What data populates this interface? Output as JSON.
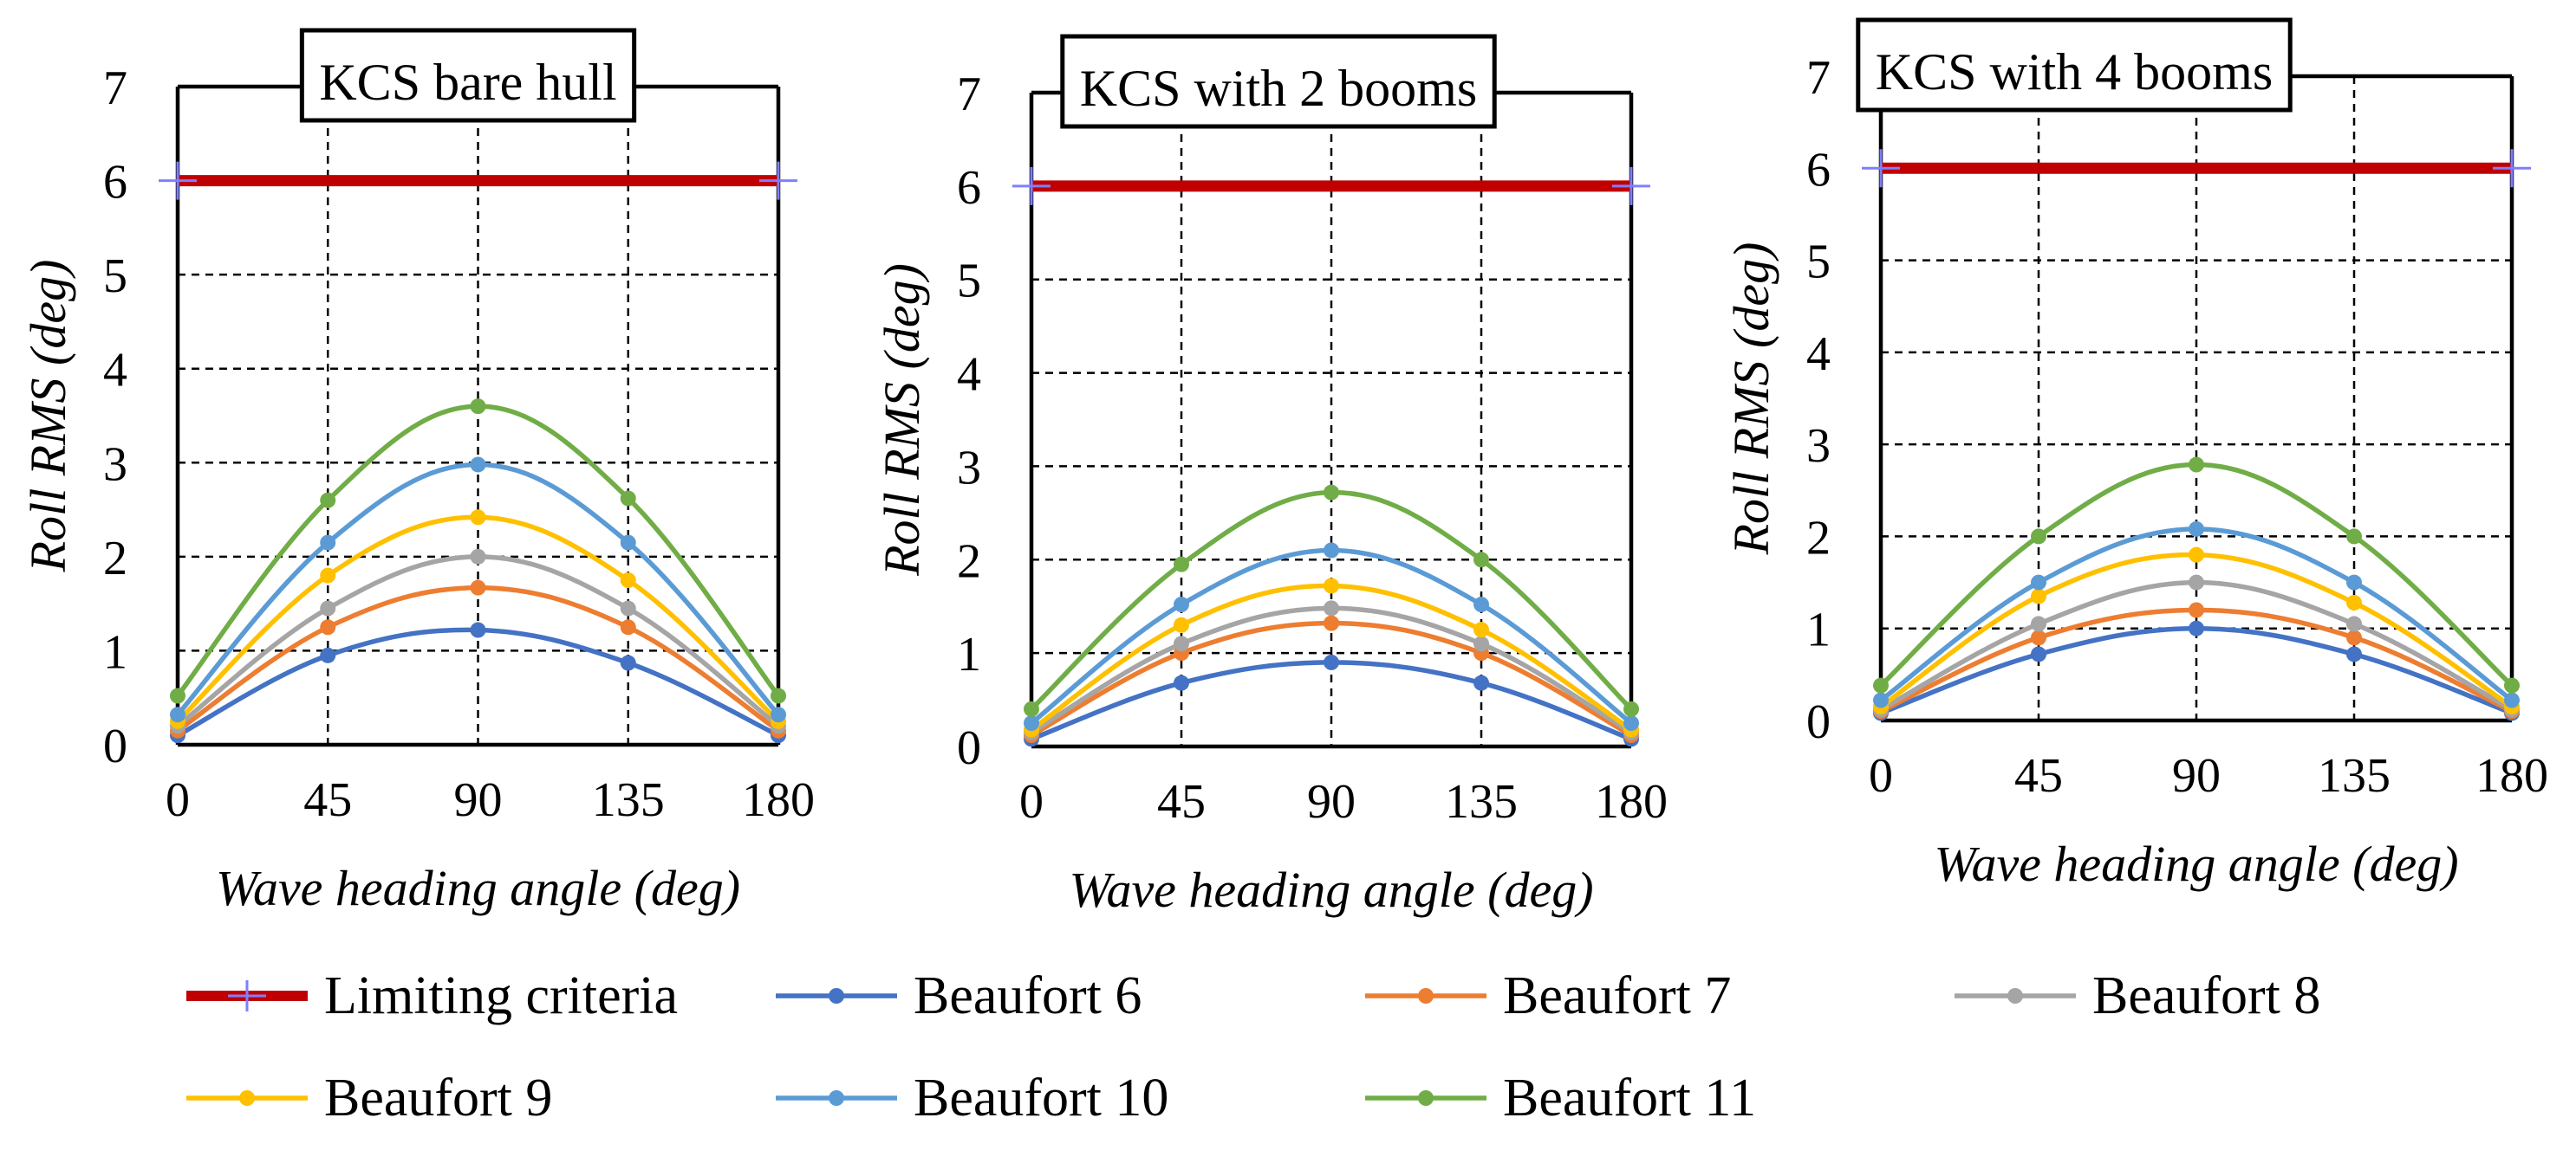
{
  "chart_data": [
    {
      "type": "line",
      "title": "KCS bare hull",
      "xlabel": "Wave heading angle (deg)",
      "ylabel": "Roll RMS (deg)",
      "x": [
        0,
        45,
        90,
        135,
        180
      ],
      "xlim": [
        0,
        180
      ],
      "ylim": [
        0,
        7
      ],
      "xticks": [
        "0",
        "45",
        "90",
        "135",
        "180"
      ],
      "yticks": [
        "0",
        "1",
        "2",
        "3",
        "4",
        "5",
        "6",
        "7"
      ],
      "grid": true,
      "series": [
        {
          "name": "Limiting criteria",
          "values": [
            6,
            6,
            6,
            6,
            6
          ]
        },
        {
          "name": "Beaufort 6",
          "values": [
            0.1,
            0.95,
            1.22,
            0.87,
            0.1
          ]
        },
        {
          "name": "Beaufort 7",
          "values": [
            0.15,
            1.25,
            1.67,
            1.25,
            0.15
          ]
        },
        {
          "name": "Beaufort 8",
          "values": [
            0.2,
            1.45,
            2.0,
            1.45,
            0.2
          ]
        },
        {
          "name": "Beaufort 9",
          "values": [
            0.25,
            1.8,
            2.42,
            1.75,
            0.25
          ]
        },
        {
          "name": "Beaufort 10",
          "values": [
            0.32,
            2.15,
            2.98,
            2.15,
            0.32
          ]
        },
        {
          "name": "Beaufort 11",
          "values": [
            0.52,
            2.6,
            3.6,
            2.62,
            0.52
          ]
        }
      ]
    },
    {
      "type": "line",
      "title": "KCS with 2 booms",
      "xlabel": "Wave heading angle (deg)",
      "ylabel": "Roll RMS (deg)",
      "x": [
        0,
        45,
        90,
        135,
        180
      ],
      "xlim": [
        0,
        180
      ],
      "ylim": [
        0,
        7
      ],
      "xticks": [
        "0",
        "45",
        "90",
        "135",
        "180"
      ],
      "yticks": [
        "0",
        "1",
        "2",
        "3",
        "4",
        "5",
        "6",
        "7"
      ],
      "grid": true,
      "series": [
        {
          "name": "Limiting criteria",
          "values": [
            6,
            6,
            6,
            6,
            6
          ]
        },
        {
          "name": "Beaufort 6",
          "values": [
            0.08,
            0.68,
            0.9,
            0.68,
            0.08
          ]
        },
        {
          "name": "Beaufort 7",
          "values": [
            0.12,
            1.0,
            1.32,
            1.0,
            0.12
          ]
        },
        {
          "name": "Beaufort 8",
          "values": [
            0.15,
            1.1,
            1.48,
            1.1,
            0.15
          ]
        },
        {
          "name": "Beaufort 9",
          "values": [
            0.18,
            1.3,
            1.72,
            1.25,
            0.18
          ]
        },
        {
          "name": "Beaufort 10",
          "values": [
            0.25,
            1.52,
            2.1,
            1.52,
            0.25
          ]
        },
        {
          "name": "Beaufort 11",
          "values": [
            0.4,
            1.95,
            2.72,
            2.0,
            0.4
          ]
        }
      ]
    },
    {
      "type": "line",
      "title": "KCS with 4 booms",
      "xlabel": "Wave heading angle (deg)",
      "ylabel": "Roll RMS (deg)",
      "x": [
        0,
        45,
        90,
        135,
        180
      ],
      "xlim": [
        0,
        180
      ],
      "ylim": [
        0,
        7
      ],
      "xticks": [
        "0",
        "45",
        "90",
        "135",
        "180"
      ],
      "yticks": [
        "0",
        "1",
        "2",
        "3",
        "4",
        "5",
        "6",
        "7"
      ],
      "grid": true,
      "series": [
        {
          "name": "Limiting criteria",
          "values": [
            6,
            6,
            6,
            6,
            6
          ]
        },
        {
          "name": "Beaufort 6",
          "values": [
            0.08,
            0.72,
            1.0,
            0.72,
            0.08
          ]
        },
        {
          "name": "Beaufort 7",
          "values": [
            0.1,
            0.9,
            1.2,
            0.9,
            0.1
          ]
        },
        {
          "name": "Beaufort 8",
          "values": [
            0.12,
            1.05,
            1.5,
            1.05,
            0.12
          ]
        },
        {
          "name": "Beaufort 9",
          "values": [
            0.15,
            1.35,
            1.8,
            1.28,
            0.15
          ]
        },
        {
          "name": "Beaufort 10",
          "values": [
            0.22,
            1.5,
            2.08,
            1.5,
            0.22
          ]
        },
        {
          "name": "Beaufort 11",
          "values": [
            0.38,
            2.0,
            2.78,
            2.0,
            0.38
          ]
        }
      ]
    }
  ],
  "colors": {
    "Limiting criteria": "#c00000",
    "Beaufort 6": "#4472c4",
    "Beaufort 7": "#ed7d31",
    "Beaufort 8": "#a5a5a5",
    "Beaufort 9": "#ffc000",
    "Beaufort 10": "#5b9bd5",
    "Beaufort 11": "#70ad47",
    "limit_marker": "#7f7fff"
  },
  "legend": [
    {
      "label": "Limiting criteria",
      "key": "Limiting criteria",
      "marker": "cross"
    },
    {
      "label": "Beaufort 6",
      "key": "Beaufort 6",
      "marker": "dot"
    },
    {
      "label": "Beaufort 7",
      "key": "Beaufort 7",
      "marker": "dot"
    },
    {
      "label": "Beaufort 8",
      "key": "Beaufort 8",
      "marker": "dot"
    },
    {
      "label": "Beaufort 9",
      "key": "Beaufort 9",
      "marker": "dot"
    },
    {
      "label": "Beaufort 10",
      "key": "Beaufort 10",
      "marker": "dot"
    },
    {
      "label": "Beaufort 11",
      "key": "Beaufort 11",
      "marker": "dot"
    }
  ]
}
